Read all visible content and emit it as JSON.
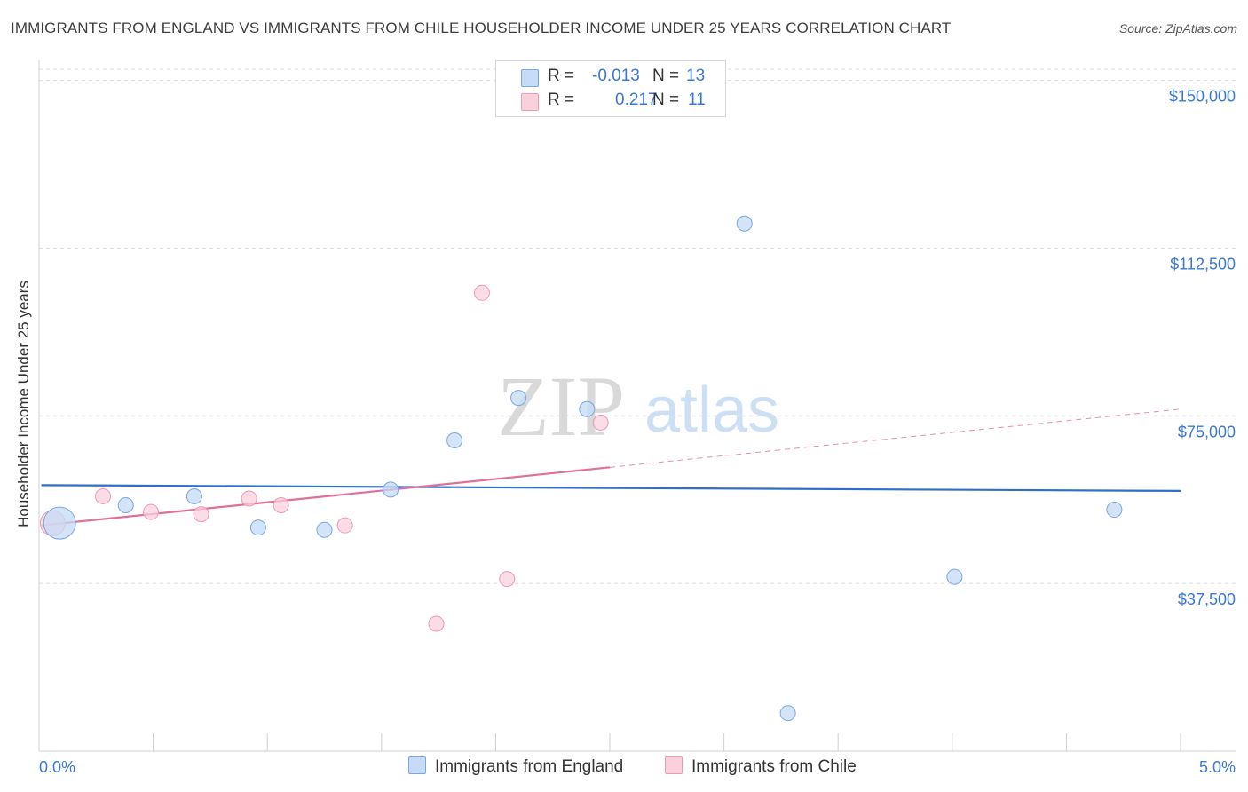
{
  "title": "IMMIGRANTS FROM ENGLAND VS IMMIGRANTS FROM CHILE HOUSEHOLDER INCOME UNDER 25 YEARS CORRELATION CHART",
  "source": "Source: ZipAtlas.com",
  "watermark": {
    "zip": "ZIP",
    "atlas": "atlas"
  },
  "legend": {
    "england": {
      "r_label": "R =",
      "r_value": "-0.013",
      "n_label": "N =",
      "n_value": "13"
    },
    "chile": {
      "r_label": "R =",
      "r_value": "0.217",
      "n_label": "N =",
      "n_value": "11"
    }
  },
  "colors": {
    "england_fill": "#c6dbf5",
    "england_stroke": "#7aa7e0",
    "england_line": "#2f6fc9",
    "chile_fill": "#fbd0dd",
    "chile_stroke": "#ec9ab5",
    "chile_line": "#e0709a",
    "axis_text": "#3a78d4"
  },
  "chart_data": {
    "type": "scatter",
    "title": "IMMIGRANTS FROM ENGLAND VS IMMIGRANTS FROM CHILE HOUSEHOLDER INCOME UNDER 25 YEARS CORRELATION CHART",
    "xlabel": "",
    "ylabel": "Householder Income Under 25 years",
    "xlim": [
      0,
      5
    ],
    "ylim": [
      0,
      152500
    ],
    "x_tick_labels": [
      "0.0%",
      "5.0%"
    ],
    "y_ticks": [
      {
        "value": 37500,
        "label": "$37,500"
      },
      {
        "value": 75000,
        "label": "$75,000"
      },
      {
        "value": 112500,
        "label": "$112,500"
      },
      {
        "value": 150000,
        "label": "$150,000"
      }
    ],
    "series": [
      {
        "name": "Immigrants from England",
        "points": [
          {
            "x": 0.09,
            "y": 51000,
            "size": "large"
          },
          {
            "x": 0.38,
            "y": 55000
          },
          {
            "x": 0.68,
            "y": 57000
          },
          {
            "x": 0.96,
            "y": 50000
          },
          {
            "x": 1.25,
            "y": 49500
          },
          {
            "x": 1.54,
            "y": 58500
          },
          {
            "x": 1.82,
            "y": 69500
          },
          {
            "x": 2.1,
            "y": 79000
          },
          {
            "x": 2.4,
            "y": 76500
          },
          {
            "x": 3.09,
            "y": 118000
          },
          {
            "x": 3.28,
            "y": 8500
          },
          {
            "x": 4.01,
            "y": 39000
          },
          {
            "x": 4.71,
            "y": 54000
          }
        ],
        "trend": {
          "x0": 0.01,
          "y0": 59500,
          "x1": 5.0,
          "y1": 58200,
          "solid_until": 5.0
        }
      },
      {
        "name": "Immigrants from Chile",
        "points": [
          {
            "x": 0.06,
            "y": 51000,
            "size": "medium"
          },
          {
            "x": 0.28,
            "y": 57000
          },
          {
            "x": 0.49,
            "y": 53500
          },
          {
            "x": 0.71,
            "y": 53000
          },
          {
            "x": 0.92,
            "y": 56500
          },
          {
            "x": 1.06,
            "y": 55000
          },
          {
            "x": 1.34,
            "y": 50500
          },
          {
            "x": 1.74,
            "y": 28500
          },
          {
            "x": 1.94,
            "y": 102500
          },
          {
            "x": 2.05,
            "y": 38500
          },
          {
            "x": 2.46,
            "y": 73500
          }
        ],
        "trend": {
          "x0": 0.01,
          "y0": 50500,
          "x1": 5.0,
          "y1": 76500,
          "solid_until": 2.5
        }
      }
    ]
  }
}
